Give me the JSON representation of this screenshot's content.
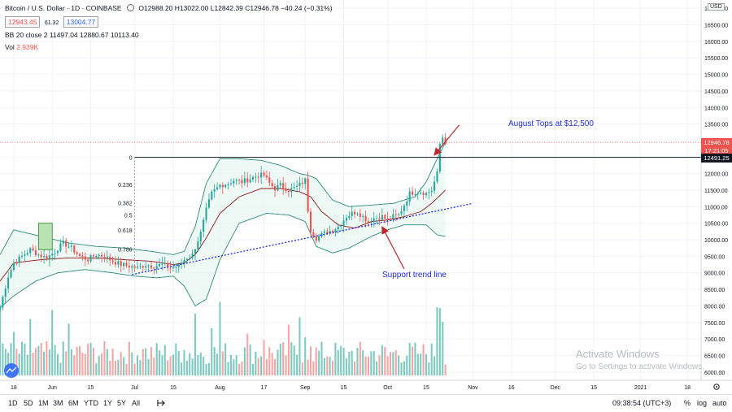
{
  "header": {
    "symbol": "Bitcoin / U.S. Dollar · 1D · COINBASE",
    "ohlc": "O12988.20 H13022.00 L12842.39 C12946.78 −40.24 (−0.31%)",
    "bid": "12943.45",
    "spread": "61.32",
    "ask": "13004.77",
    "bb_label": "BB 20 close 2",
    "bb_values": "11497.04  12880.67  10113.40",
    "vol_label": "Vol",
    "vol_value": "2.939K"
  },
  "price_axis": {
    "currency": "USD",
    "current_price": "12946.78",
    "countdown": "17:21:05",
    "line_price": "12491.25"
  },
  "annotations": {
    "august_tops": "August Tops at $12,500",
    "support": "Support trend line",
    "fib_levels": [
      "0",
      "0.236",
      "0.382",
      "0.5",
      "0.618",
      "0.786"
    ]
  },
  "bottom": {
    "timeframes": [
      "1D",
      "5D",
      "1M",
      "3M",
      "6M",
      "YTD",
      "1Y",
      "5Y",
      "All"
    ],
    "clock": "09:38:54 (UTC+3)",
    "percent": "%",
    "log": "log",
    "auto": "auto"
  },
  "watermark": {
    "title": "Activate Windows",
    "sub": "Go to Settings to activate Windows."
  },
  "colors": {
    "up": "#26a69a",
    "down": "#ef5350",
    "bb_band": "#2e8b7a",
    "bb_basis": "#8b1a1a",
    "trend": "#1f2bd6",
    "text_blue": "#1f2bd6",
    "arrow": "#c0242c"
  },
  "chart_data": {
    "type": "candlestick",
    "title": "Bitcoin / U.S. Dollar · 1D · COINBASE",
    "ylim": [
      5750,
      17250
    ],
    "y_ticks": [
      17000,
      16500,
      16000,
      15500,
      15000,
      14500,
      14000,
      13500,
      13000,
      12500,
      12000,
      11500,
      11000,
      10500,
      10000,
      9500,
      9000,
      8500,
      8000,
      7500,
      7000,
      6500,
      6000
    ],
    "x_ticks": [
      {
        "label": "18",
        "day": 0
      },
      {
        "label": "Jun",
        "day": 14
      },
      {
        "label": "15",
        "day": 28
      },
      {
        "label": "Jul",
        "day": 44
      },
      {
        "label": "15",
        "day": 58
      },
      {
        "label": "Aug",
        "day": 75
      },
      {
        "label": "17",
        "day": 91
      },
      {
        "label": "Sep",
        "day": 106
      },
      {
        "label": "15",
        "day": 120
      },
      {
        "label": "Oct",
        "day": 136
      },
      {
        "label": "15",
        "day": 150
      },
      {
        "label": "Nov",
        "day": 167
      },
      {
        "label": "16",
        "day": 181
      },
      {
        "label": "Dec",
        "day": 197
      },
      {
        "label": "15",
        "day": 211
      },
      {
        "label": "2021",
        "day": 228
      },
      {
        "label": "18",
        "day": 245
      }
    ],
    "xlim_days": [
      -5,
      250
    ],
    "anchors": [
      [
        -5,
        7950
      ],
      [
        -2,
        8900
      ],
      [
        0,
        9300
      ],
      [
        3,
        9500
      ],
      [
        6,
        9700
      ],
      [
        9,
        9550
      ],
      [
        12,
        9450
      ],
      [
        15,
        9650
      ],
      [
        18,
        9900
      ],
      [
        21,
        9750
      ],
      [
        24,
        9500
      ],
      [
        27,
        9400
      ],
      [
        30,
        9550
      ],
      [
        33,
        9500
      ],
      [
        36,
        9350
      ],
      [
        39,
        9250
      ],
      [
        42,
        9200
      ],
      [
        45,
        9150
      ],
      [
        48,
        9250
      ],
      [
        51,
        9200
      ],
      [
        54,
        9250
      ],
      [
        57,
        9150
      ],
      [
        60,
        9200
      ],
      [
        62,
        9400
      ],
      [
        65,
        9550
      ],
      [
        68,
        10200
      ],
      [
        70,
        10900
      ],
      [
        72,
        11400
      ],
      [
        75,
        11650
      ],
      [
        78,
        11700
      ],
      [
        80,
        11800
      ],
      [
        83,
        11750
      ],
      [
        86,
        11850
      ],
      [
        89,
        11950
      ],
      [
        91,
        11950
      ],
      [
        93,
        11700
      ],
      [
        95,
        11550
      ],
      [
        97,
        11650
      ],
      [
        100,
        11500
      ],
      [
        103,
        11600
      ],
      [
        106,
        11800
      ],
      [
        107,
        10900
      ],
      [
        108,
        10300
      ],
      [
        110,
        10050
      ],
      [
        112,
        10150
      ],
      [
        114,
        10250
      ],
      [
        116,
        10300
      ],
      [
        118,
        10400
      ],
      [
        121,
        10700
      ],
      [
        123,
        10800
      ],
      [
        125,
        10850
      ],
      [
        127,
        10700
      ],
      [
        129,
        10550
      ],
      [
        131,
        10650
      ],
      [
        134,
        10700
      ],
      [
        136,
        10600
      ],
      [
        138,
        10700
      ],
      [
        140,
        10750
      ],
      [
        142,
        11050
      ],
      [
        144,
        11400
      ],
      [
        146,
        11450
      ],
      [
        148,
        11450
      ],
      [
        150,
        11400
      ],
      [
        152,
        11500
      ],
      [
        154,
        12000
      ],
      [
        155,
        12900
      ],
      [
        156,
        13100
      ],
      [
        157,
        12950
      ]
    ],
    "bb_upper_anchors": [
      [
        -5,
        9550
      ],
      [
        0,
        10300
      ],
      [
        10,
        10100
      ],
      [
        20,
        9900
      ],
      [
        30,
        9800
      ],
      [
        40,
        9750
      ],
      [
        50,
        9650
      ],
      [
        58,
        9550
      ],
      [
        62,
        9650
      ],
      [
        66,
        10400
      ],
      [
        70,
        11700
      ],
      [
        75,
        12450
      ],
      [
        82,
        12450
      ],
      [
        90,
        12400
      ],
      [
        97,
        12250
      ],
      [
        104,
        12000
      ],
      [
        107,
        11950
      ],
      [
        110,
        11850
      ],
      [
        116,
        11200
      ],
      [
        122,
        11000
      ],
      [
        130,
        11050
      ],
      [
        138,
        11100
      ],
      [
        146,
        11300
      ],
      [
        150,
        11750
      ],
      [
        154,
        12450
      ],
      [
        157,
        12950
      ]
    ],
    "bb_lower_anchors": [
      [
        -5,
        7950
      ],
      [
        0,
        8300
      ],
      [
        8,
        8750
      ],
      [
        16,
        9000
      ],
      [
        26,
        9100
      ],
      [
        36,
        9000
      ],
      [
        44,
        8900
      ],
      [
        52,
        8850
      ],
      [
        58,
        8900
      ],
      [
        62,
        8600
      ],
      [
        66,
        8000
      ],
      [
        70,
        8200
      ],
      [
        75,
        9400
      ],
      [
        82,
        10500
      ],
      [
        92,
        10800
      ],
      [
        100,
        10750
      ],
      [
        106,
        10550
      ],
      [
        110,
        9800
      ],
      [
        116,
        9600
      ],
      [
        122,
        9750
      ],
      [
        130,
        10100
      ],
      [
        136,
        10300
      ],
      [
        142,
        10450
      ],
      [
        146,
        10450
      ],
      [
        150,
        10450
      ],
      [
        154,
        10150
      ],
      [
        157,
        10100
      ]
    ],
    "bb_basis_anchors": [
      [
        -5,
        8750
      ],
      [
        0,
        9300
      ],
      [
        10,
        9400
      ],
      [
        20,
        9450
      ],
      [
        30,
        9450
      ],
      [
        40,
        9400
      ],
      [
        50,
        9350
      ],
      [
        58,
        9250
      ],
      [
        62,
        9300
      ],
      [
        66,
        9550
      ],
      [
        70,
        10050
      ],
      [
        75,
        10800
      ],
      [
        82,
        11300
      ],
      [
        90,
        11550
      ],
      [
        97,
        11550
      ],
      [
        104,
        11450
      ],
      [
        108,
        11300
      ],
      [
        112,
        10850
      ],
      [
        118,
        10450
      ],
      [
        124,
        10350
      ],
      [
        130,
        10550
      ],
      [
        136,
        10600
      ],
      [
        142,
        10700
      ],
      [
        148,
        10850
      ],
      [
        152,
        11100
      ],
      [
        157,
        11500
      ]
    ],
    "volume_ylim": [
      0,
      8500
    ],
    "avg_volume": 2000,
    "volume_spikes": [
      [
        -5,
        7900
      ],
      [
        0,
        4800
      ],
      [
        6,
        6200
      ],
      [
        14,
        7200
      ],
      [
        20,
        5700
      ],
      [
        28,
        3600
      ],
      [
        48,
        3000
      ],
      [
        62,
        2800
      ],
      [
        66,
        6800
      ],
      [
        72,
        5200
      ],
      [
        75,
        8100
      ],
      [
        85,
        4600
      ],
      [
        91,
        3900
      ],
      [
        100,
        5600
      ],
      [
        104,
        6400
      ],
      [
        106,
        4200
      ],
      [
        108,
        3200
      ],
      [
        122,
        2600
      ],
      [
        136,
        2100
      ],
      [
        148,
        2400
      ],
      [
        154,
        7500
      ],
      [
        155,
        7400
      ],
      [
        156,
        5900
      ],
      [
        157,
        1200
      ]
    ],
    "horizontal_line": 12491.25,
    "trend_line": [
      [
        43,
        8950
      ],
      [
        167,
        11100
      ]
    ],
    "fib_x_days": [
      44,
      63
    ],
    "fib_levels": [
      {
        "level": "0",
        "value": 12500
      },
      {
        "level": "0.236",
        "value": 11670
      },
      {
        "level": "0.382",
        "value": 11120
      },
      {
        "level": "0.5",
        "value": 10750
      },
      {
        "level": "0.618",
        "value": 10300
      },
      {
        "level": "0.786",
        "value": 9720
      }
    ],
    "fib_box": [
      [
        9,
        9700
      ],
      [
        14,
        10500
      ]
    ],
    "arrows": [
      [
        [
          162,
          13470
        ],
        [
          153,
          12560
        ]
      ],
      [
        [
          142,
          9120
        ],
        [
          134,
          10390
        ]
      ]
    ]
  }
}
